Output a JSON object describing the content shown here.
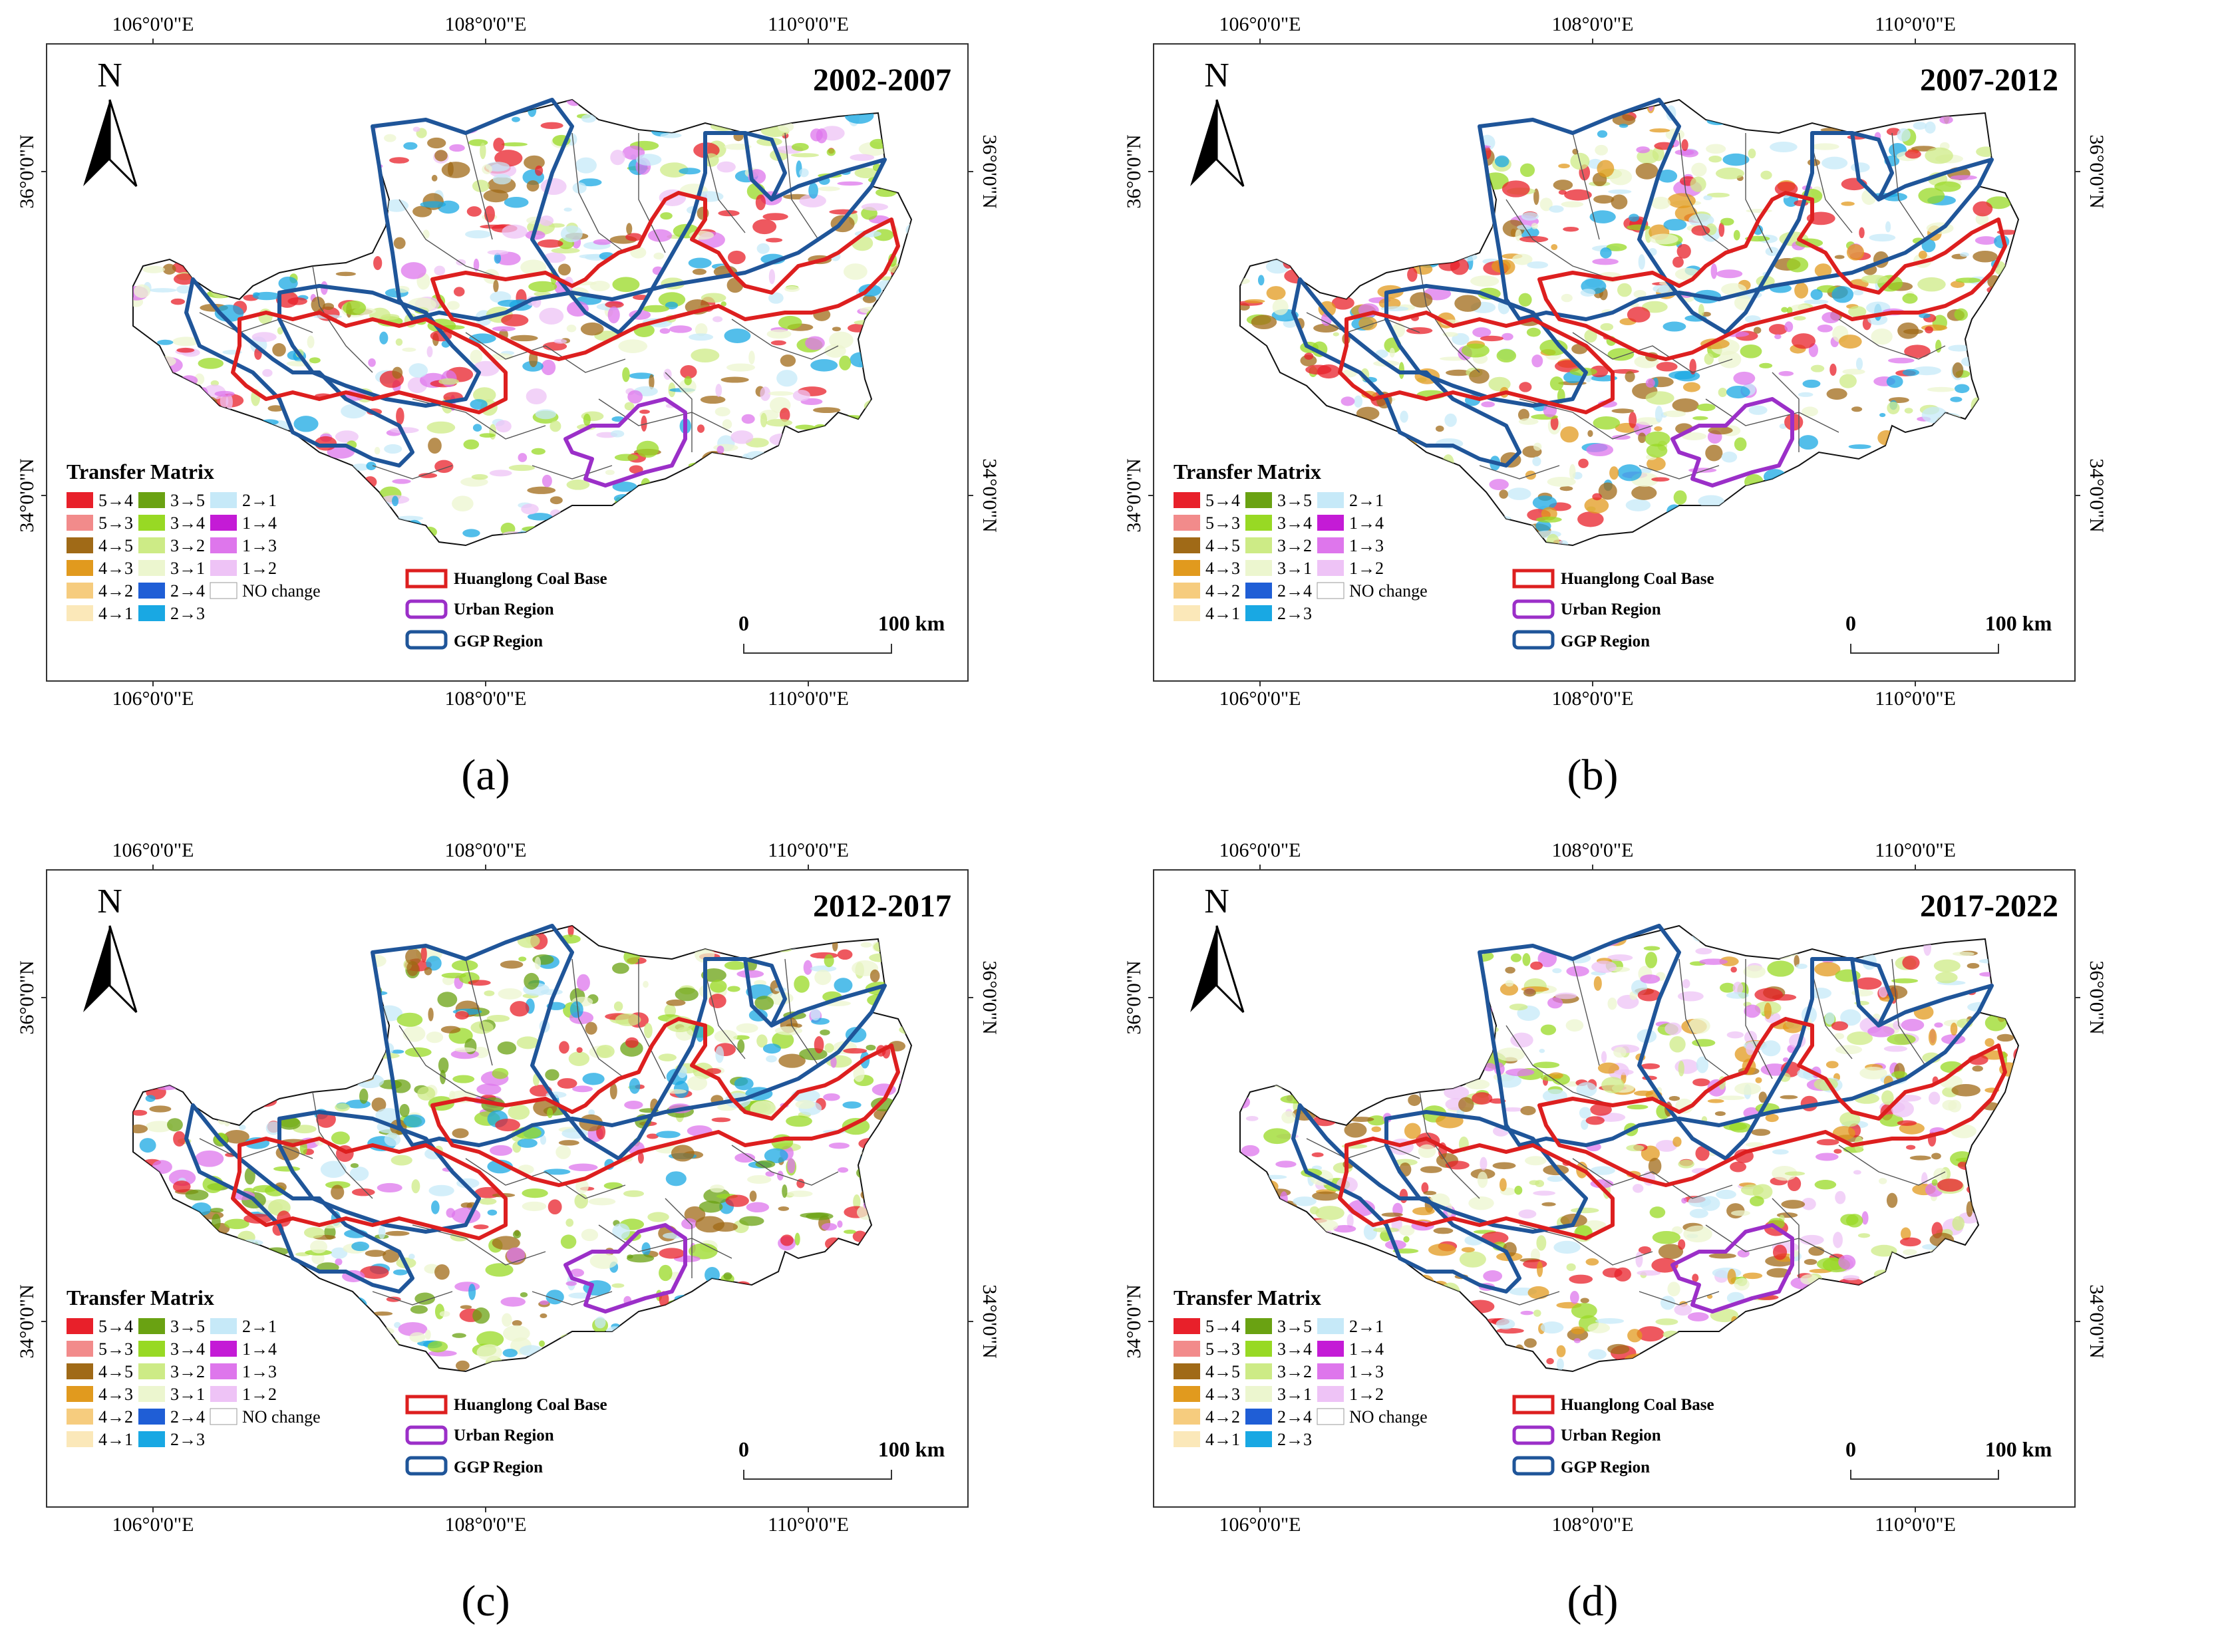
{
  "panels": [
    {
      "period": "2002-2007",
      "caption": "(a)"
    },
    {
      "period": "2007-2012",
      "caption": "(b)"
    },
    {
      "period": "2012-2017",
      "caption": "(c)"
    },
    {
      "period": "2017-2022",
      "caption": "(d)"
    }
  ],
  "axes": {
    "top_ticks": [
      "106°0'0\"E",
      "108°0'0\"E",
      "110°0'0\"E"
    ],
    "bottom_ticks": [
      "106°0'0\"E",
      "108°0'0\"E",
      "110°0'0\"E"
    ],
    "lat_ticks": [
      "36°0'0\"N",
      "34°0'0\"N"
    ]
  },
  "north_arrow": {
    "label": "N",
    "icon": "north-arrow-icon"
  },
  "legend": {
    "title": "Transfer Matrix",
    "columns": [
      [
        {
          "label": "5→4",
          "color": "#e8202a"
        },
        {
          "label": "5→3",
          "color": "#f28b8b"
        },
        {
          "label": "4→5",
          "color": "#a06a17"
        },
        {
          "label": "4→3",
          "color": "#e19a1e"
        },
        {
          "label": "4→2",
          "color": "#f6cc7e"
        },
        {
          "label": "4→1",
          "color": "#fbe8b9"
        }
      ],
      [
        {
          "label": "3→5",
          "color": "#6aa212"
        },
        {
          "label": "3→4",
          "color": "#98d924"
        },
        {
          "label": "3→2",
          "color": "#cdeb86"
        },
        {
          "label": "3→1",
          "color": "#ecf6cf"
        },
        {
          "label": "2→4",
          "color": "#1f5ed6"
        },
        {
          "label": "2→3",
          "color": "#19a8e3"
        }
      ],
      [
        {
          "label": "2→1",
          "color": "#c6e9f8"
        },
        {
          "label": "1→4",
          "color": "#c41bd6"
        },
        {
          "label": "1→3",
          "color": "#de76ec"
        },
        {
          "label": "1→2",
          "color": "#eec3f6"
        },
        {
          "label": "NO change",
          "color": "#ffffff"
        }
      ]
    ]
  },
  "boundaries": [
    {
      "label": "Huanglong Coal Base",
      "color": "#dd1f1f"
    },
    {
      "label": "Urban Region",
      "color": "#9b2fc8"
    },
    {
      "label": "GGP Region",
      "color": "#1f5599"
    }
  ],
  "scale_bar": {
    "start": "0",
    "end": "100 km"
  }
}
